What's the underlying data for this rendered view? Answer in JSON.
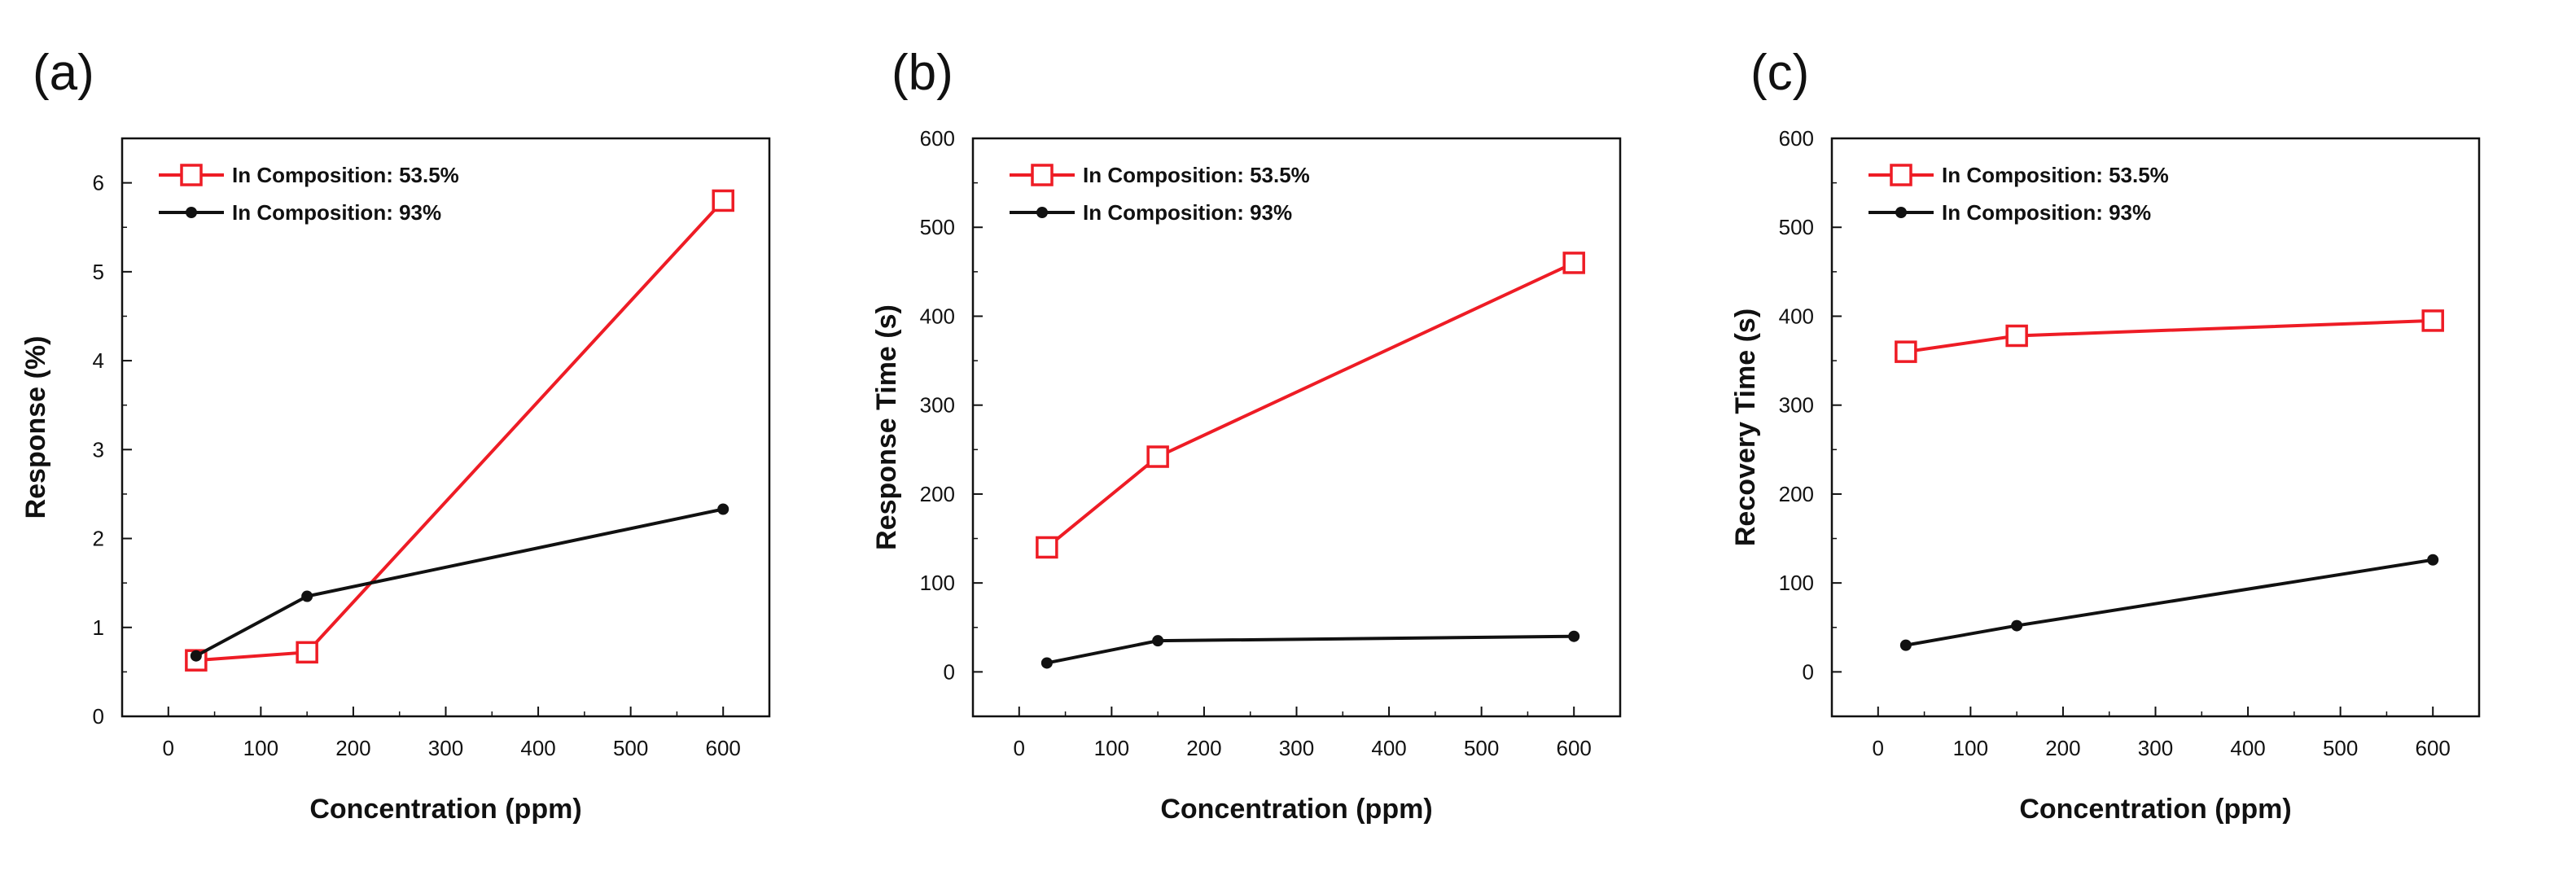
{
  "figure": {
    "panels": [
      "a",
      "b",
      "c"
    ]
  },
  "chart_data": [
    {
      "type": "line",
      "panel_label": "(a)",
      "title": "",
      "xlabel": "Concentration (ppm)",
      "ylabel": "Response (%)",
      "xlim": [
        -50,
        650
      ],
      "ylim": [
        0,
        6.5
      ],
      "xticks": [
        0,
        100,
        200,
        300,
        400,
        500,
        600
      ],
      "yticks": [
        0,
        1,
        2,
        3,
        4,
        5,
        6
      ],
      "legend_position": "top-left",
      "series": [
        {
          "name": "In Composition: 53.5%",
          "color": "#ee1c25",
          "marker": "open-square",
          "x": [
            30,
            150,
            600
          ],
          "y": [
            0.63,
            0.72,
            5.8
          ]
        },
        {
          "name": "In Composition: 93%",
          "color": "#111111",
          "marker": "filled-circle",
          "x": [
            30,
            150,
            600
          ],
          "y": [
            0.68,
            1.35,
            2.33
          ]
        }
      ]
    },
    {
      "type": "line",
      "panel_label": "(b)",
      "title": "",
      "xlabel": "Concentration (ppm)",
      "ylabel": "Response Time (s)",
      "xlim": [
        -50,
        650
      ],
      "ylim": [
        -50,
        600
      ],
      "xticks": [
        0,
        100,
        200,
        300,
        400,
        500,
        600
      ],
      "yticks": [
        0,
        100,
        200,
        300,
        400,
        500,
        600
      ],
      "legend_position": "top-left",
      "series": [
        {
          "name": "In Composition: 53.5%",
          "color": "#ee1c25",
          "marker": "open-square",
          "x": [
            30,
            150,
            600
          ],
          "y": [
            140,
            242,
            460
          ]
        },
        {
          "name": "In Composition: 93%",
          "color": "#111111",
          "marker": "filled-circle",
          "x": [
            30,
            150,
            600
          ],
          "y": [
            10,
            35,
            40
          ]
        }
      ]
    },
    {
      "type": "line",
      "panel_label": "(c)",
      "title": "",
      "xlabel": "Concentration (ppm)",
      "ylabel": "Recovery Time (s)",
      "xlim": [
        -50,
        650
      ],
      "ylim": [
        -50,
        600
      ],
      "xticks": [
        0,
        100,
        200,
        300,
        400,
        500,
        600
      ],
      "yticks": [
        0,
        100,
        200,
        300,
        400,
        500,
        600
      ],
      "legend_position": "top-left",
      "series": [
        {
          "name": "In Composition: 53.5%",
          "color": "#ee1c25",
          "marker": "open-square",
          "x": [
            30,
            150,
            600
          ],
          "y": [
            360,
            378,
            395
          ]
        },
        {
          "name": "In Composition: 93%",
          "color": "#111111",
          "marker": "filled-circle",
          "x": [
            30,
            150,
            600
          ],
          "y": [
            30,
            52,
            126
          ]
        }
      ]
    }
  ]
}
